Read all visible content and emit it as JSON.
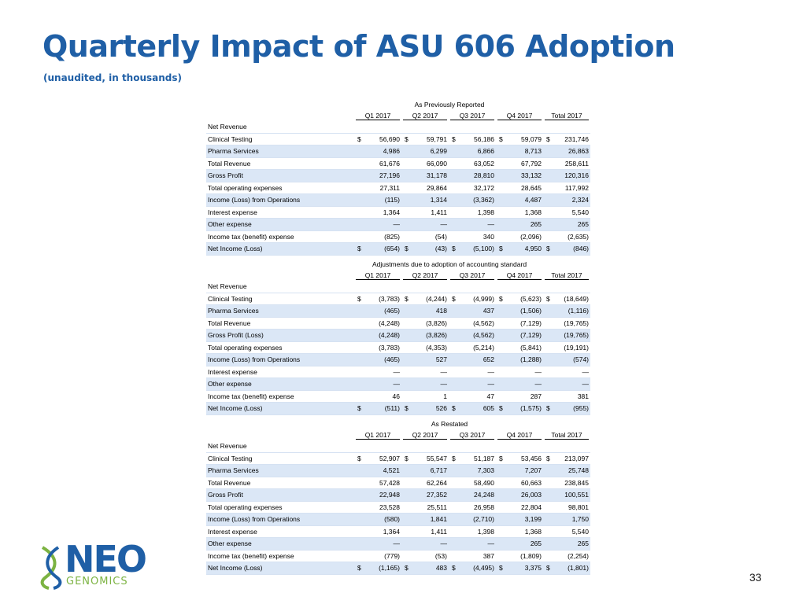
{
  "title": "Quarterly Impact of ASU 606 Adoption",
  "subtitle": "(unaudited, in thousands)",
  "columns": [
    "Q1 2017",
    "Q2 2017",
    "Q3 2017",
    "Q4 2017",
    "Total 2017"
  ],
  "sections": [
    {
      "heading": "As Previously Reported",
      "rows": [
        {
          "label": "Net Revenue",
          "values": [
            "",
            "",
            "",
            "",
            ""
          ],
          "currency": false,
          "shade": false
        },
        {
          "label": "Clinical Testing",
          "values": [
            "56,690",
            "59,791",
            "56,186",
            "59,079",
            "231,746"
          ],
          "currency": true,
          "shade": false
        },
        {
          "label": "Pharma Services",
          "values": [
            "4,986",
            "6,299",
            "6,866",
            "8,713",
            "26,863"
          ],
          "currency": false,
          "shade": true
        },
        {
          "label": "Total Revenue",
          "values": [
            "61,676",
            "66,090",
            "63,052",
            "67,792",
            "258,611"
          ],
          "currency": false,
          "shade": false
        },
        {
          "label": "Gross Profit",
          "values": [
            "27,196",
            "31,178",
            "28,810",
            "33,132",
            "120,316"
          ],
          "currency": false,
          "shade": true
        },
        {
          "label": "Total operating expenses",
          "values": [
            "27,311",
            "29,864",
            "32,172",
            "28,645",
            "117,992"
          ],
          "currency": false,
          "shade": false
        },
        {
          "label": "Income (Loss) from Operations",
          "values": [
            "(115)",
            "1,314",
            "(3,362)",
            "4,487",
            "2,324"
          ],
          "currency": false,
          "shade": true
        },
        {
          "label": "Interest expense",
          "values": [
            "1,364",
            "1,411",
            "1,398",
            "1,368",
            "5,540"
          ],
          "currency": false,
          "shade": false
        },
        {
          "label": "Other expense",
          "values": [
            "—",
            "—",
            "—",
            "265",
            "265"
          ],
          "currency": false,
          "shade": true
        },
        {
          "label": "Income tax (benefit) expense",
          "values": [
            "(825)",
            "(54)",
            "340",
            "(2,096)",
            "(2,635)"
          ],
          "currency": false,
          "shade": false
        },
        {
          "label": "Net Income (Loss)",
          "values": [
            "(654)",
            "(43)",
            "(5,100)",
            "4,950",
            "(846)"
          ],
          "currency": true,
          "shade": true
        }
      ]
    },
    {
      "heading": "Adjustments due to adoption of accounting standard",
      "rows": [
        {
          "label": "Net Revenue",
          "values": [
            "",
            "",
            "",
            "",
            ""
          ],
          "currency": false,
          "shade": false
        },
        {
          "label": "Clinical Testing",
          "values": [
            "(3,783)",
            "(4,244)",
            "(4,999)",
            "(5,623)",
            "(18,649)"
          ],
          "currency": true,
          "shade": false
        },
        {
          "label": "Pharma Services",
          "values": [
            "(465)",
            "418",
            "437",
            "(1,506)",
            "(1,116)"
          ],
          "currency": false,
          "shade": true
        },
        {
          "label": "Total Revenue",
          "values": [
            "(4,248)",
            "(3,826)",
            "(4,562)",
            "(7,129)",
            "(19,765)"
          ],
          "currency": false,
          "shade": false
        },
        {
          "label": "Gross Profit (Loss)",
          "values": [
            "(4,248)",
            "(3,826)",
            "(4,562)",
            "(7,129)",
            "(19,765)"
          ],
          "currency": false,
          "shade": true
        },
        {
          "label": "Total operating expenses",
          "values": [
            "(3,783)",
            "(4,353)",
            "(5,214)",
            "(5,841)",
            "(19,191)"
          ],
          "currency": false,
          "shade": false
        },
        {
          "label": "Income (Loss) from Operations",
          "values": [
            "(465)",
            "527",
            "652",
            "(1,288)",
            "(574)"
          ],
          "currency": false,
          "shade": true
        },
        {
          "label": "Interest expense",
          "values": [
            "—",
            "—",
            "—",
            "—",
            "—"
          ],
          "currency": false,
          "shade": false
        },
        {
          "label": "Other expense",
          "values": [
            "—",
            "—",
            "—",
            "—",
            "—"
          ],
          "currency": false,
          "shade": true
        },
        {
          "label": "Income tax (benefit) expense",
          "values": [
            "46",
            "1",
            "47",
            "287",
            "381"
          ],
          "currency": false,
          "shade": false
        },
        {
          "label": "Net Income (Loss)",
          "values": [
            "(511)",
            "526",
            "605",
            "(1,575)",
            "(955)"
          ],
          "currency": true,
          "shade": true
        }
      ]
    },
    {
      "heading": "As Restated",
      "rows": [
        {
          "label": "Net Revenue",
          "values": [
            "",
            "",
            "",
            "",
            ""
          ],
          "currency": false,
          "shade": false
        },
        {
          "label": "Clinical Testing",
          "values": [
            "52,907",
            "55,547",
            "51,187",
            "53,456",
            "213,097"
          ],
          "currency": true,
          "shade": false
        },
        {
          "label": "Pharma Services",
          "values": [
            "4,521",
            "6,717",
            "7,303",
            "7,207",
            "25,748"
          ],
          "currency": false,
          "shade": true
        },
        {
          "label": "Total Revenue",
          "values": [
            "57,428",
            "62,264",
            "58,490",
            "60,663",
            "238,845"
          ],
          "currency": false,
          "shade": false
        },
        {
          "label": "Gross Profit",
          "values": [
            "22,948",
            "27,352",
            "24,248",
            "26,003",
            "100,551"
          ],
          "currency": false,
          "shade": true
        },
        {
          "label": "Total operating expenses",
          "values": [
            "23,528",
            "25,511",
            "26,958",
            "22,804",
            "98,801"
          ],
          "currency": false,
          "shade": false
        },
        {
          "label": "Income (Loss) from Operations",
          "values": [
            "(580)",
            "1,841",
            "(2,710)",
            "3,199",
            "1,750"
          ],
          "currency": false,
          "shade": true
        },
        {
          "label": "Interest expense",
          "values": [
            "1,364",
            "1,411",
            "1,398",
            "1,368",
            "5,540"
          ],
          "currency": false,
          "shade": false
        },
        {
          "label": "Other expense",
          "values": [
            "—",
            "—",
            "—",
            "265",
            "265"
          ],
          "currency": false,
          "shade": true
        },
        {
          "label": "Income tax (benefit) expense",
          "values": [
            "(779)",
            "(53)",
            "387",
            "(1,809)",
            "(2,254)"
          ],
          "currency": false,
          "shade": false
        },
        {
          "label": "Net Income (Loss)",
          "values": [
            "(1,165)",
            "483",
            "(4,495)",
            "3,375",
            "(1,801)"
          ],
          "currency": true,
          "shade": true
        }
      ]
    }
  ],
  "currency_symbol": "$",
  "logo": {
    "wordmark": "NEO",
    "tagline": "GENOMICS"
  },
  "page_number": "33",
  "colors": {
    "title": "#1f5fa6",
    "row_shade": "#dbe7f6",
    "logo_green": "#7cb342"
  }
}
